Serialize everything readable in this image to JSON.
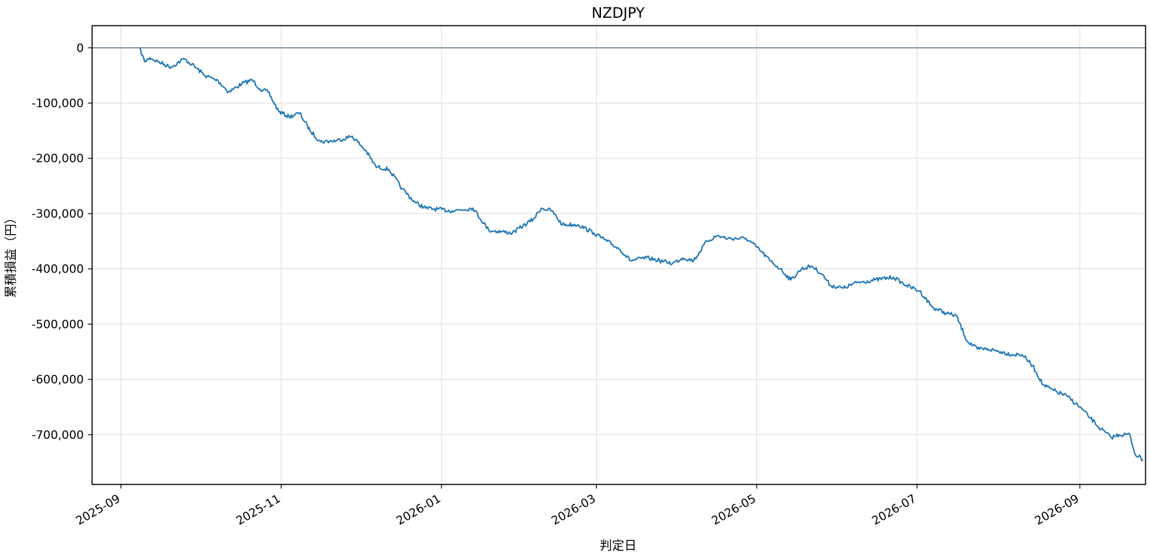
{
  "chart_data": {
    "type": "line",
    "title": "NZDJPY",
    "xlabel": "判定日",
    "ylabel": "累積損益（円）",
    "x_ticks": [
      "2025-09",
      "2025-11",
      "2026-01",
      "2026-03",
      "2026-05",
      "2026-07",
      "2026-09"
    ],
    "y_ticks": [
      "0",
      "-100,000",
      "-200,000",
      "-300,000",
      "-400,000",
      "-500,000",
      "-600,000",
      "-700,000"
    ],
    "xlim": [
      "2025-08-21",
      "2026-09-26"
    ],
    "ylim": [
      -790000,
      40000
    ],
    "grid": true,
    "reference_line_y": 0,
    "colors": {
      "line": "#1f77b4",
      "zero_line": "#5f7380",
      "grid": "#dddddd"
    },
    "series": [
      {
        "name": "",
        "points": [
          [
            "2025-09-08",
            0
          ],
          [
            "2025-09-10",
            -25000
          ],
          [
            "2025-09-12",
            -18000
          ],
          [
            "2025-09-15",
            -25000
          ],
          [
            "2025-09-20",
            -35000
          ],
          [
            "2025-09-25",
            -20000
          ],
          [
            "2025-09-28",
            -30000
          ],
          [
            "2025-10-03",
            -50000
          ],
          [
            "2025-10-08",
            -60000
          ],
          [
            "2025-10-12",
            -80000
          ],
          [
            "2025-10-17",
            -65000
          ],
          [
            "2025-10-21",
            -58000
          ],
          [
            "2025-10-24",
            -75000
          ],
          [
            "2025-10-27",
            -80000
          ],
          [
            "2025-10-31",
            -115000
          ],
          [
            "2025-11-04",
            -125000
          ],
          [
            "2025-11-08",
            -118000
          ],
          [
            "2025-11-12",
            -150000
          ],
          [
            "2025-11-16",
            -170000
          ],
          [
            "2025-11-22",
            -168000
          ],
          [
            "2025-11-28",
            -160000
          ],
          [
            "2025-12-03",
            -185000
          ],
          [
            "2025-12-07",
            -215000
          ],
          [
            "2025-12-12",
            -220000
          ],
          [
            "2025-12-17",
            -255000
          ],
          [
            "2025-12-22",
            -280000
          ],
          [
            "2025-12-26",
            -290000
          ],
          [
            "2026-01-05",
            -295000
          ],
          [
            "2026-01-13",
            -290000
          ],
          [
            "2026-01-19",
            -330000
          ],
          [
            "2026-01-28",
            -335000
          ],
          [
            "2026-02-05",
            -310000
          ],
          [
            "2026-02-08",
            -290000
          ],
          [
            "2026-02-12",
            -295000
          ],
          [
            "2026-02-16",
            -320000
          ],
          [
            "2026-02-22",
            -320000
          ],
          [
            "2026-02-28",
            -335000
          ],
          [
            "2026-03-05",
            -350000
          ],
          [
            "2026-03-10",
            -365000
          ],
          [
            "2026-03-14",
            -385000
          ],
          [
            "2026-03-20",
            -380000
          ],
          [
            "2026-03-25",
            -385000
          ],
          [
            "2026-03-30",
            -390000
          ],
          [
            "2026-04-03",
            -380000
          ],
          [
            "2026-04-07",
            -385000
          ],
          [
            "2026-04-12",
            -350000
          ],
          [
            "2026-04-16",
            -340000
          ],
          [
            "2026-04-20",
            -345000
          ],
          [
            "2026-04-27",
            -345000
          ],
          [
            "2026-05-02",
            -365000
          ],
          [
            "2026-05-06",
            -385000
          ],
          [
            "2026-05-10",
            -400000
          ],
          [
            "2026-05-14",
            -420000
          ],
          [
            "2026-05-18",
            -400000
          ],
          [
            "2026-05-22",
            -395000
          ],
          [
            "2026-05-26",
            -410000
          ],
          [
            "2026-05-29",
            -430000
          ],
          [
            "2026-06-03",
            -435000
          ],
          [
            "2026-06-08",
            -425000
          ],
          [
            "2026-06-15",
            -420000
          ],
          [
            "2026-06-22",
            -415000
          ],
          [
            "2026-06-27",
            -430000
          ],
          [
            "2026-07-02",
            -440000
          ],
          [
            "2026-07-07",
            -470000
          ],
          [
            "2026-07-12",
            -480000
          ],
          [
            "2026-07-16",
            -485000
          ],
          [
            "2026-07-20",
            -530000
          ],
          [
            "2026-07-24",
            -545000
          ],
          [
            "2026-07-28",
            -545000
          ],
          [
            "2026-08-02",
            -550000
          ],
          [
            "2026-08-06",
            -555000
          ],
          [
            "2026-08-10",
            -555000
          ],
          [
            "2026-08-14",
            -575000
          ],
          [
            "2026-08-18",
            -610000
          ],
          [
            "2026-08-22",
            -620000
          ],
          [
            "2026-08-27",
            -630000
          ],
          [
            "2026-09-01",
            -650000
          ],
          [
            "2026-09-05",
            -670000
          ],
          [
            "2026-09-09",
            -690000
          ],
          [
            "2026-09-13",
            -705000
          ],
          [
            "2026-09-16",
            -700000
          ],
          [
            "2026-09-20",
            -700000
          ],
          [
            "2026-09-22",
            -735000
          ],
          [
            "2026-09-25",
            -745000
          ]
        ]
      }
    ]
  }
}
